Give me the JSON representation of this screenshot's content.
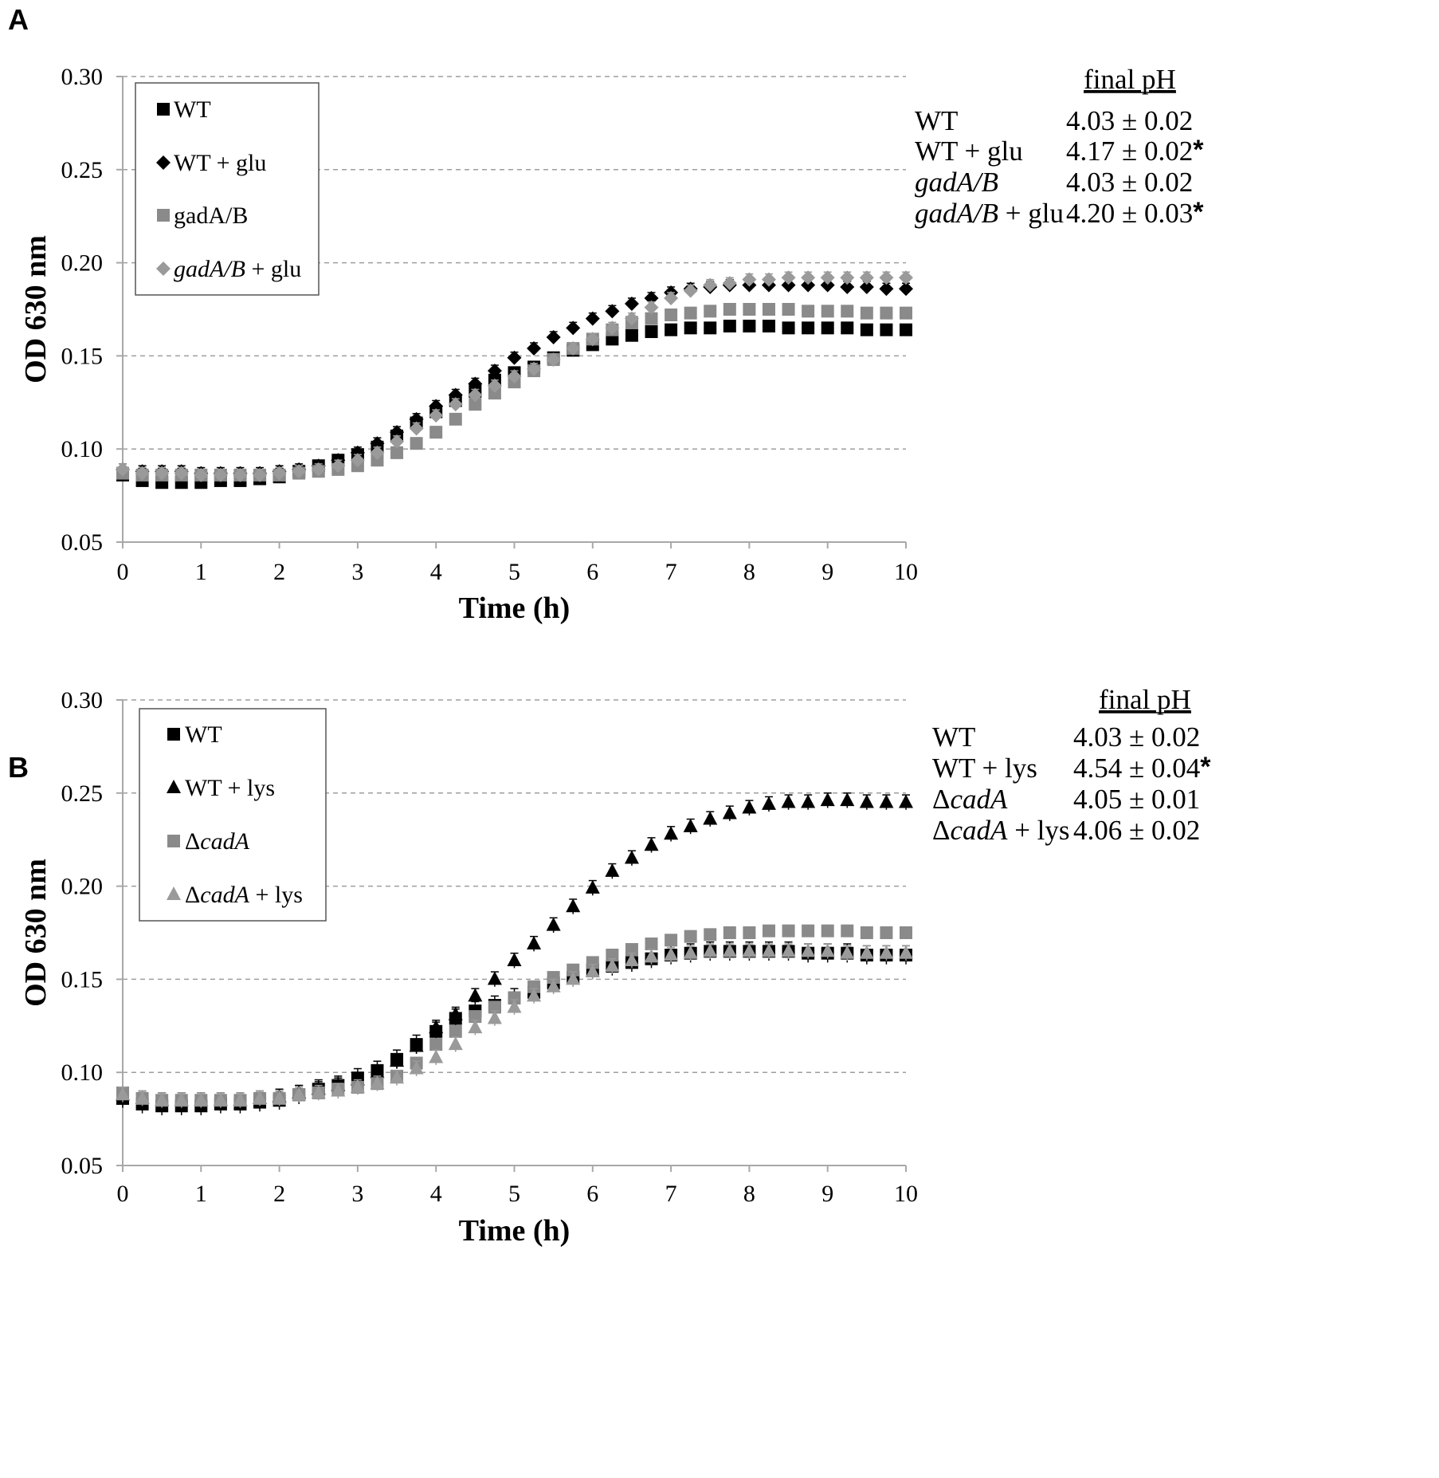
{
  "colors": {
    "black": "#000000",
    "dark_gray": "#7d7d7d",
    "gray": "#8a8a8a",
    "light_gray": "#9a9a9a",
    "grid": "#9e9e9e",
    "axis": "#a8a8a8"
  },
  "chart_data": [
    {
      "panel": "A",
      "type": "scatter",
      "title": "",
      "xlabel": "Time (h)",
      "ylabel": "OD 630 nm",
      "xlim": [
        0,
        10
      ],
      "ylim": [
        0.05,
        0.3
      ],
      "x_ticks": [
        "0",
        "1",
        "2",
        "3",
        "4",
        "5",
        "6",
        "7",
        "8",
        "9",
        "10"
      ],
      "y_ticks": [
        "0.05",
        "0.10",
        "0.15",
        "0.20",
        "0.25",
        "0.30"
      ],
      "grid": "horizontal dashed",
      "legend_position": "top-left",
      "x": [
        0,
        0.25,
        0.5,
        0.75,
        1,
        1.25,
        1.5,
        1.75,
        2,
        2.25,
        2.5,
        2.75,
        3,
        3.25,
        3.5,
        3.75,
        4,
        4.25,
        4.5,
        4.75,
        5,
        5.25,
        5.5,
        5.75,
        6,
        6.25,
        6.5,
        6.75,
        7,
        7.25,
        7.5,
        7.75,
        8,
        8.25,
        8.5,
        8.75,
        9,
        9.25,
        9.5,
        9.75,
        10
      ],
      "series": [
        {
          "name": "WT",
          "marker": "square",
          "color": "#000000",
          "error": 0.002,
          "values": [
            0.086,
            0.083,
            0.082,
            0.082,
            0.082,
            0.083,
            0.083,
            0.084,
            0.085,
            0.088,
            0.091,
            0.094,
            0.097,
            0.101,
            0.107,
            0.114,
            0.12,
            0.126,
            0.131,
            0.137,
            0.141,
            0.144,
            0.149,
            0.153,
            0.156,
            0.159,
            0.161,
            0.163,
            0.164,
            0.165,
            0.165,
            0.166,
            0.166,
            0.166,
            0.165,
            0.165,
            0.165,
            0.165,
            0.164,
            0.164,
            0.164
          ]
        },
        {
          "name": "WT + glu",
          "label_main": "WT + glu",
          "label_italic": "",
          "marker": "diamond",
          "color": "#000000",
          "error": 0.003,
          "values": [
            0.089,
            0.088,
            0.088,
            0.088,
            0.087,
            0.087,
            0.087,
            0.087,
            0.088,
            0.089,
            0.091,
            0.094,
            0.098,
            0.103,
            0.109,
            0.116,
            0.123,
            0.129,
            0.135,
            0.142,
            0.149,
            0.154,
            0.16,
            0.165,
            0.17,
            0.174,
            0.178,
            0.181,
            0.184,
            0.186,
            0.187,
            0.188,
            0.188,
            0.188,
            0.188,
            0.188,
            0.188,
            0.187,
            0.187,
            0.186,
            0.186
          ]
        },
        {
          "name": "gadA/B",
          "marker": "square",
          "color": "#8a8a8a",
          "error": 0.003,
          "values": [
            0.087,
            0.086,
            0.086,
            0.086,
            0.086,
            0.086,
            0.086,
            0.086,
            0.086,
            0.087,
            0.088,
            0.089,
            0.091,
            0.094,
            0.098,
            0.103,
            0.109,
            0.116,
            0.124,
            0.13,
            0.136,
            0.142,
            0.148,
            0.154,
            0.159,
            0.164,
            0.168,
            0.17,
            0.172,
            0.173,
            0.174,
            0.175,
            0.175,
            0.175,
            0.175,
            0.174,
            0.174,
            0.174,
            0.173,
            0.173,
            0.173
          ]
        },
        {
          "name": "gadA/B + glu",
          "label_italic": "gadA/B",
          "label_rest": " + glu",
          "marker": "diamond",
          "color": "#9a9a9a",
          "error": 0.003,
          "values": [
            0.089,
            0.087,
            0.087,
            0.087,
            0.086,
            0.086,
            0.086,
            0.086,
            0.087,
            0.088,
            0.089,
            0.091,
            0.094,
            0.098,
            0.104,
            0.111,
            0.118,
            0.124,
            0.129,
            0.134,
            0.139,
            0.143,
            0.148,
            0.154,
            0.159,
            0.165,
            0.17,
            0.176,
            0.181,
            0.185,
            0.188,
            0.189,
            0.191,
            0.191,
            0.192,
            0.192,
            0.192,
            0.192,
            0.192,
            0.192,
            0.192
          ]
        }
      ],
      "final_ph": {
        "heading": "final pH",
        "rows": [
          {
            "label": "WT",
            "label_italic": "",
            "label_rest": "WT",
            "value": "4.03 ± 0.02",
            "star": ""
          },
          {
            "label": "WT + glu",
            "label_italic": "",
            "label_rest": "WT + glu",
            "value": "4.17 ± 0.02",
            "star": "*"
          },
          {
            "label": "gadA/B",
            "label_italic": "gadA/B",
            "label_rest": "",
            "value": "4.03 ± 0.02",
            "star": ""
          },
          {
            "label": "gadA/B + glu",
            "label_italic": "gadA/B",
            "label_rest": " + glu",
            "value": "4.20 ± 0.03",
            "star": "*"
          }
        ]
      }
    },
    {
      "panel": "B",
      "type": "scatter",
      "title": "",
      "xlabel": "Time (h)",
      "ylabel": "OD 630 nm",
      "xlim": [
        0,
        10
      ],
      "ylim": [
        0.05,
        0.3
      ],
      "x_ticks": [
        "0",
        "1",
        "2",
        "3",
        "4",
        "5",
        "6",
        "7",
        "8",
        "9",
        "10"
      ],
      "y_ticks": [
        "0.05",
        "0.10",
        "0.15",
        "0.20",
        "0.25",
        "0.30"
      ],
      "grid": "horizontal dashed",
      "legend_position": "top-left",
      "x": [
        0,
        0.25,
        0.5,
        0.75,
        1,
        1.25,
        1.5,
        1.75,
        2,
        2.25,
        2.5,
        2.75,
        3,
        3.25,
        3.5,
        3.75,
        4,
        4.25,
        4.5,
        4.75,
        5,
        5.25,
        5.5,
        5.75,
        6,
        6.25,
        6.5,
        6.75,
        7,
        7.25,
        7.5,
        7.75,
        8,
        8.25,
        8.5,
        8.75,
        9,
        9.25,
        9.5,
        9.75,
        10
      ],
      "series": [
        {
          "name": "WT",
          "marker": "square",
          "color": "#000000",
          "error": 0.005,
          "values": [
            0.086,
            0.083,
            0.082,
            0.082,
            0.082,
            0.083,
            0.083,
            0.084,
            0.085,
            0.088,
            0.091,
            0.093,
            0.097,
            0.101,
            0.107,
            0.115,
            0.122,
            0.129,
            0.133,
            0.136,
            0.14,
            0.143,
            0.148,
            0.151,
            0.155,
            0.157,
            0.159,
            0.161,
            0.163,
            0.164,
            0.165,
            0.165,
            0.165,
            0.165,
            0.165,
            0.164,
            0.164,
            0.164,
            0.163,
            0.163,
            0.163
          ]
        },
        {
          "name": "WT + lys",
          "marker": "triangle",
          "color": "#000000",
          "error": 0.004,
          "values": [
            0.088,
            0.086,
            0.085,
            0.085,
            0.085,
            0.085,
            0.085,
            0.086,
            0.087,
            0.089,
            0.091,
            0.093,
            0.096,
            0.1,
            0.106,
            0.114,
            0.124,
            0.131,
            0.141,
            0.15,
            0.16,
            0.169,
            0.179,
            0.189,
            0.199,
            0.208,
            0.215,
            0.222,
            0.228,
            0.232,
            0.236,
            0.239,
            0.242,
            0.244,
            0.245,
            0.245,
            0.246,
            0.246,
            0.245,
            0.245,
            0.245
          ]
        },
        {
          "name": "ΔcadA",
          "label_prefix": "Δ",
          "label_italic": "cadA",
          "label_rest": "",
          "marker": "square",
          "color": "#8a8a8a",
          "error": 0.003,
          "values": [
            0.089,
            0.086,
            0.085,
            0.085,
            0.085,
            0.085,
            0.085,
            0.086,
            0.086,
            0.088,
            0.089,
            0.091,
            0.092,
            0.094,
            0.098,
            0.105,
            0.115,
            0.122,
            0.13,
            0.135,
            0.14,
            0.146,
            0.151,
            0.155,
            0.159,
            0.163,
            0.166,
            0.169,
            0.171,
            0.173,
            0.174,
            0.175,
            0.175,
            0.176,
            0.176,
            0.176,
            0.176,
            0.176,
            0.175,
            0.175,
            0.175
          ]
        },
        {
          "name": "ΔcadA + lys",
          "label_prefix": "Δ",
          "label_italic": "cadA",
          "label_rest": " + lys",
          "marker": "triangle",
          "color": "#9a9a9a",
          "error": 0.004,
          "values": [
            0.088,
            0.086,
            0.085,
            0.085,
            0.085,
            0.085,
            0.085,
            0.086,
            0.086,
            0.088,
            0.089,
            0.09,
            0.092,
            0.094,
            0.097,
            0.102,
            0.108,
            0.115,
            0.124,
            0.129,
            0.135,
            0.141,
            0.146,
            0.15,
            0.154,
            0.157,
            0.16,
            0.162,
            0.163,
            0.164,
            0.165,
            0.165,
            0.165,
            0.165,
            0.165,
            0.165,
            0.165,
            0.164,
            0.164,
            0.164,
            0.164
          ]
        }
      ],
      "final_ph": {
        "heading": "final pH",
        "rows": [
          {
            "label": "WT",
            "label_prefix": "",
            "label_italic": "",
            "label_rest": "WT",
            "value": "4.03 ± 0.02",
            "star": ""
          },
          {
            "label": "WT + lys",
            "label_prefix": "",
            "label_italic": "",
            "label_rest": "WT + lys",
            "value": "4.54 ± 0.04",
            "star": "*"
          },
          {
            "label": "ΔcadA",
            "label_prefix": "Δ",
            "label_italic": "cadA",
            "label_rest": "",
            "value": "4.05 ± 0.01",
            "star": ""
          },
          {
            "label": "ΔcadA + lys",
            "label_prefix": "Δ",
            "label_italic": "cadA",
            "label_rest": " + lys",
            "value": "4.06 ± 0.02",
            "star": ""
          }
        ]
      }
    }
  ]
}
